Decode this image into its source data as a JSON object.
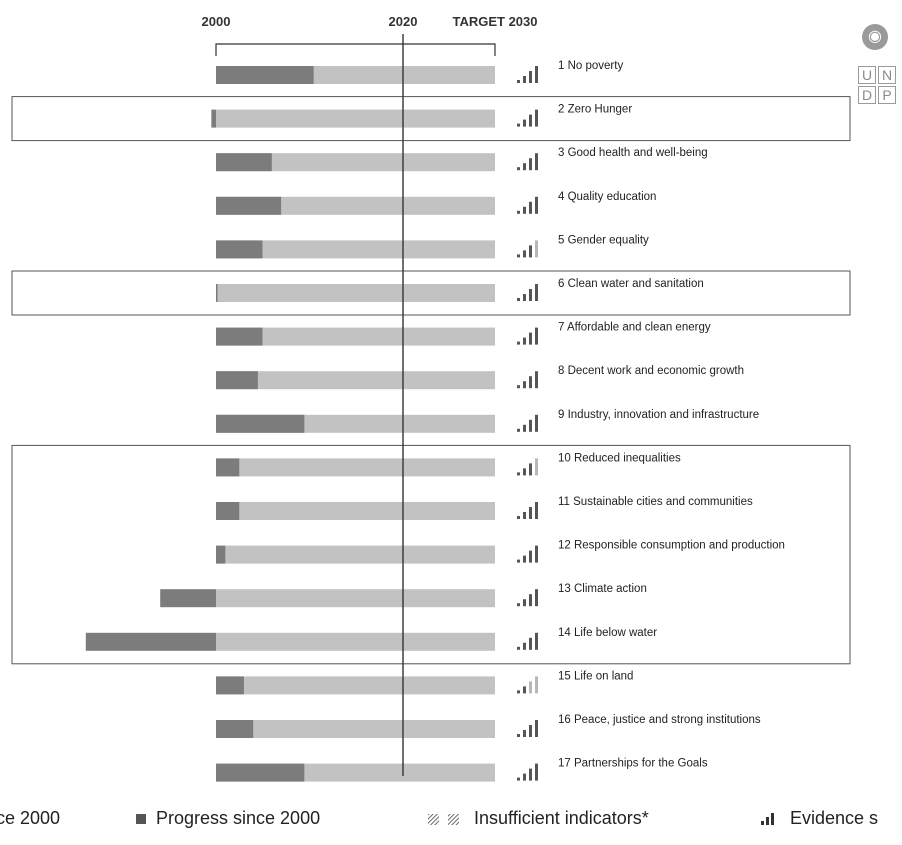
{
  "logo": {
    "text": "UNDP",
    "cells": [
      "U",
      "N",
      "D",
      "P"
    ]
  },
  "chart_data": {
    "type": "bar",
    "axis_labels": [
      "2000",
      "2020",
      "TARGET 2030"
    ],
    "xlim": [
      2000,
      2030
    ],
    "categories": [
      "1 No poverty",
      "2 Zero Hunger",
      "3 Good health and well-being",
      "4 Quality education",
      "5 Gender equality",
      "6 Clean water and sanitation",
      "7 Affordable and clean energy",
      "8 Decent work and economic growth",
      "9 Industry, innovation and infrastructure",
      "10 Reduced inequalities",
      "11 Sustainable cities and communities",
      "12 Responsible consumption and production",
      "13 Climate action",
      "14 Life below water",
      "15 Life on land",
      "16 Peace, justice and strong institutions",
      "17 Partnerships for the Goals"
    ],
    "series": [
      {
        "name": "Progress since 2000",
        "values": [
          10.5,
          -0.5,
          6.0,
          7.0,
          5.0,
          0.1,
          5.0,
          4.5,
          9.5,
          2.5,
          2.5,
          1.0,
          -6.0,
          -14.0,
          3.0,
          4.0,
          9.5
        ]
      },
      {
        "name": "Insufficient indicators*",
        "values": [
          0,
          0,
          0,
          0,
          0,
          0,
          0,
          0,
          0,
          0,
          0,
          0,
          0,
          0,
          0,
          0,
          0
        ]
      }
    ],
    "evidence_strength": [
      3,
      3,
      3,
      3,
      2,
      3,
      3,
      3,
      3,
      2,
      3,
      3,
      3,
      3,
      1,
      3,
      3
    ],
    "highlighted_groups": [
      [
        2
      ],
      [
        6
      ],
      [
        10,
        11,
        12,
        13,
        14
      ]
    ],
    "colors": {
      "progress": "#7c7c7c",
      "backlog": "#c2c2c2",
      "evidence_dark": "#555555",
      "evidence_light": "#b8b8b8",
      "box": "#555555"
    }
  },
  "legend": {
    "items": [
      {
        "label": "ce 2000",
        "icon": "solid-square-icon"
      },
      {
        "label": "Progress since 2000",
        "icon": "solid-square-icon"
      },
      {
        "label": "Insufficient indicators*",
        "icon": "hatched-squares-icon"
      },
      {
        "label": "Evidence s",
        "icon": "evidence-bars-icon"
      }
    ]
  }
}
